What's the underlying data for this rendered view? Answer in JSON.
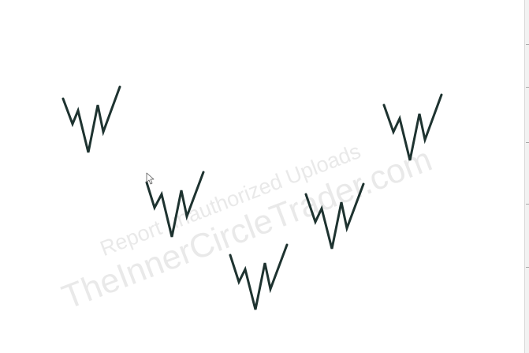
{
  "watermark": {
    "line1": "Report unauthorized Uploads",
    "line2": "TheInnerCircleTrader.com"
  },
  "colors": {
    "background": "#ffffff",
    "stroke": "#1e3330",
    "watermark": "#afafaf"
  },
  "icons": {
    "cursor": "mouse-pointer-icon"
  }
}
